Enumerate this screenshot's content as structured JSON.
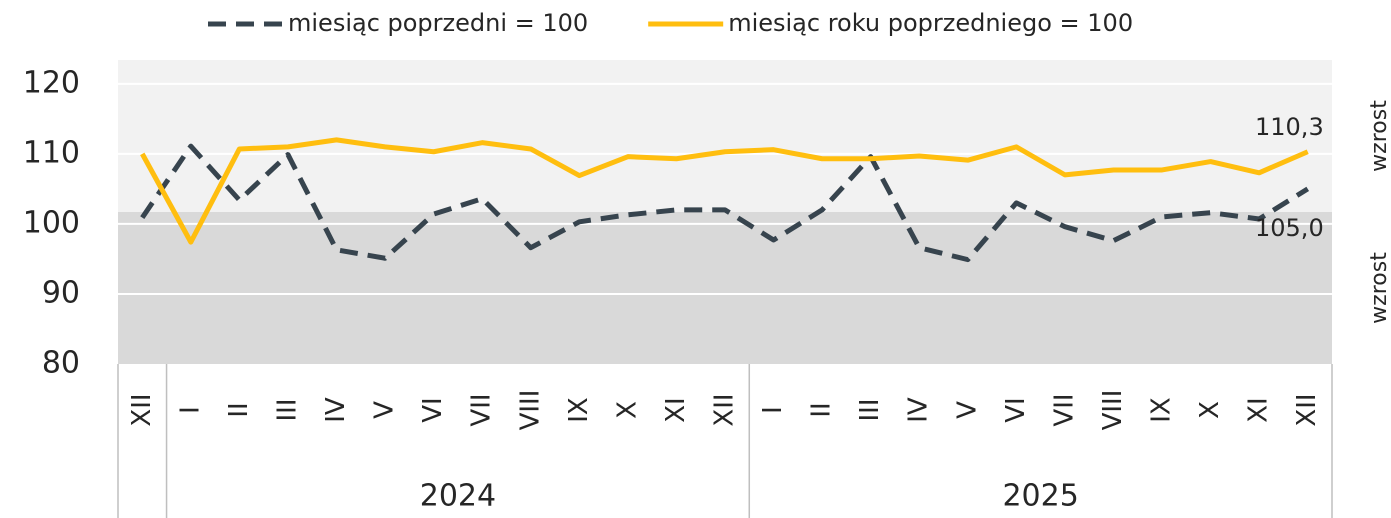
{
  "chart_data": {
    "type": "line",
    "categories": [
      "XII",
      "I",
      "II",
      "III",
      "IV",
      "V",
      "VI",
      "VII",
      "VIII",
      "IX",
      "X",
      "XI",
      "XII",
      "I",
      "II",
      "III",
      "IV",
      "V",
      "VI",
      "VII",
      "VIII",
      "IX",
      "X",
      "XI",
      "XII"
    ],
    "groups": [
      {
        "label": null,
        "span": 1
      },
      {
        "label": "2024",
        "span": 12
      },
      {
        "label": "2025",
        "span": 12
      }
    ],
    "series": [
      {
        "name": "miesiąc poprzedni = 100",
        "color": "#37444e",
        "dashed": true,
        "values": [
          100.9,
          111.1,
          103.4,
          109.9,
          96.3,
          95.1,
          101.4,
          103.6,
          96.6,
          100.3,
          101.3,
          102.0,
          102.0,
          97.7,
          102.0,
          109.6,
          96.6,
          94.9,
          103.0,
          99.6,
          97.6,
          101.0,
          101.6,
          100.7,
          105.0
        ],
        "value_labels": [
          null,
          null,
          null,
          null,
          null,
          null,
          null,
          null,
          null,
          null,
          null,
          null,
          null,
          null,
          null,
          null,
          null,
          null,
          null,
          null,
          null,
          null,
          null,
          null,
          "105,0"
        ]
      },
      {
        "name": "miesiąc roku poprzedniego = 100",
        "color": "#ffbe0f",
        "dashed": false,
        "values": [
          110.0,
          97.4,
          110.7,
          111.0,
          112.0,
          111.0,
          110.3,
          111.6,
          110.7,
          106.9,
          109.6,
          109.3,
          110.3,
          110.6,
          109.3,
          109.3,
          109.7,
          109.1,
          111.0,
          107.0,
          107.7,
          107.7,
          108.9,
          107.3,
          110.3
        ],
        "value_labels": [
          null,
          null,
          null,
          null,
          null,
          null,
          null,
          null,
          null,
          null,
          null,
          null,
          null,
          null,
          null,
          null,
          null,
          null,
          null,
          null,
          null,
          null,
          null,
          null,
          "110,3"
        ]
      }
    ],
    "bands": [
      {
        "label": "wzrost",
        "from": 101.7,
        "to": 123.4,
        "color": "#f2f2f2"
      },
      {
        "label": "wzrost",
        "from": 80,
        "to": 101.7,
        "color": "#d9d9d9"
      }
    ],
    "ylim": [
      80,
      123.4
    ],
    "yticks": [
      80,
      90,
      100,
      110,
      120
    ],
    "grid": true
  }
}
